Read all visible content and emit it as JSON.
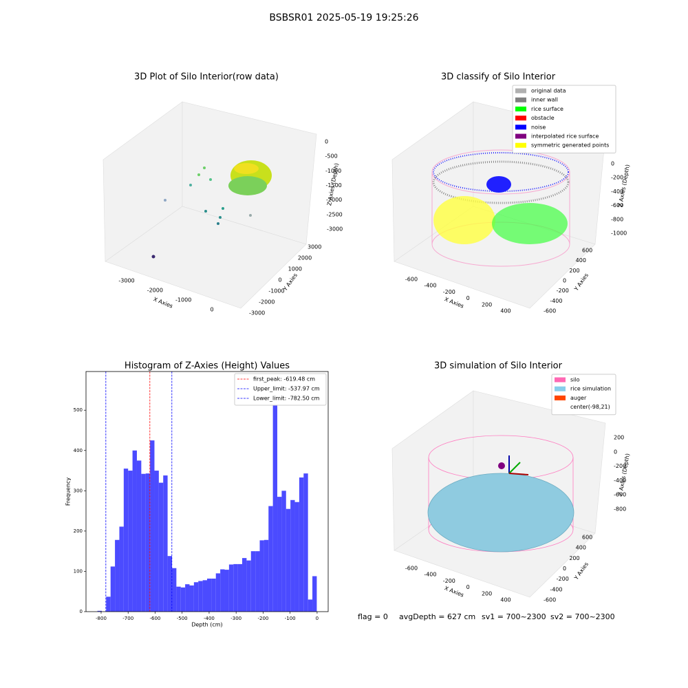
{
  "title": "BSBSR01 2025-05-19 19:25:26",
  "chart_data": [
    {
      "type": "scatter3d",
      "title": "3D Plot of Silo Interior(row data)",
      "xlabel": "X Axies",
      "ylabel": "Y Axies",
      "zlabel": "Z Axies (Depth)",
      "xticks": [
        -3000,
        -2000,
        -1000,
        0
      ],
      "yticks": [
        -3000,
        -2000,
        -1000,
        0,
        1000,
        2000,
        3000
      ],
      "zticks": [
        -3000,
        -2500,
        -2000,
        -1500,
        -1000,
        -500,
        0
      ]
    },
    {
      "type": "scatter3d",
      "title": "3D classify of Silo Interior",
      "xlabel": "X Axies",
      "ylabel": "Y Axies",
      "zlabel": "Z Axies (Depth)",
      "xticks": [
        -600,
        -400,
        -200,
        0,
        200,
        400
      ],
      "yticks": [
        -600,
        -400,
        -200,
        0,
        200,
        400,
        600
      ],
      "zticks": [
        -1000,
        -800,
        -600,
        -400,
        -200,
        0
      ],
      "legend": [
        {
          "name": "original data",
          "color": "#b0b0b0"
        },
        {
          "name": "inner wall",
          "color": "#808080"
        },
        {
          "name": "rice surface",
          "color": "#00ff00"
        },
        {
          "name": "obstacle",
          "color": "#ff0000"
        },
        {
          "name": "noise",
          "color": "#0000ff"
        },
        {
          "name": "interpolated rice surface",
          "color": "#800080"
        },
        {
          "name": "symmetric generated points",
          "color": "#ffff00"
        }
      ]
    },
    {
      "type": "histogram",
      "title": "Histogram of Z-Axies (Height) Values",
      "xlabel": "Depth (cm)",
      "ylabel": "Frequency",
      "color": "#4b4bff",
      "bins": [
        -830,
        -813.75,
        -797.5,
        -781.25,
        -765,
        -748.75,
        -732.5,
        -716.25,
        -700,
        -683.75,
        -667.5,
        -651.25,
        -635,
        -618.75,
        -602.5,
        -586.25,
        -570,
        -553.75,
        -537.5,
        -521.25,
        -505,
        -488.75,
        -472.5,
        -456.25,
        -440,
        -423.75,
        -407.5,
        -391.25,
        -375,
        -358.75,
        -342.5,
        -326.25,
        -310,
        -293.75,
        -277.5,
        -261.25,
        -245,
        -228.75,
        -212.5,
        -196.25,
        -180,
        -163.75,
        -147.5,
        -131.25,
        -115,
        -98.75,
        -82.5,
        -66.25,
        -50,
        -33.75,
        -17.5,
        -1.25
      ],
      "values": [
        0,
        2,
        0,
        37,
        112,
        178,
        211,
        355,
        350,
        400,
        375,
        342,
        343,
        425,
        350,
        320,
        338,
        138,
        108,
        62,
        60,
        68,
        65,
        73,
        76,
        78,
        82,
        82,
        95,
        105,
        104,
        117,
        118,
        118,
        133,
        127,
        150,
        150,
        177,
        178,
        262,
        570,
        285,
        300,
        255,
        277,
        272,
        333,
        343,
        30,
        88
      ],
      "xlim": [
        -856,
        41
      ],
      "ylim": [
        0,
        596
      ],
      "xticks": [
        -800,
        -700,
        -600,
        -500,
        -400,
        -300,
        -200,
        -100,
        0
      ],
      "yticks": [
        0,
        100,
        200,
        300,
        400,
        500
      ],
      "lines": [
        {
          "name": "first_peak: -619.48 cm",
          "value": -619.48,
          "color": "#ff0000"
        },
        {
          "name": "Upper_limit: -537.97 cm",
          "value": -537.97,
          "color": "#0000ff"
        },
        {
          "name": "Lower_limit: -782.50 cm",
          "value": -782.5,
          "color": "#0000ff"
        }
      ]
    },
    {
      "type": "surface3d",
      "title": "3D simulation of Silo Interior",
      "xlabel": "X Axies",
      "ylabel": "Y Axies",
      "zlabel": "Z Axies (Depth)",
      "xticks": [
        -600,
        -400,
        -200,
        0,
        200,
        400
      ],
      "yticks": [
        -600,
        -400,
        -200,
        0,
        200,
        400,
        600
      ],
      "zticks": [
        -800,
        -600,
        -400,
        -200,
        0,
        200
      ],
      "legend": [
        {
          "name": "silo",
          "color": "#ff69b4"
        },
        {
          "name": "rice simulation",
          "color": "#87ceeb"
        },
        {
          "name": "auger",
          "color": "#ff4500"
        },
        {
          "name": "center(-98,21)",
          "color": "#ffffff"
        }
      ]
    }
  ],
  "footer": [
    "flag = 0",
    "avgDepth = 627 cm",
    "sv1 = 700~2300",
    "sv2 = 700~2300"
  ]
}
